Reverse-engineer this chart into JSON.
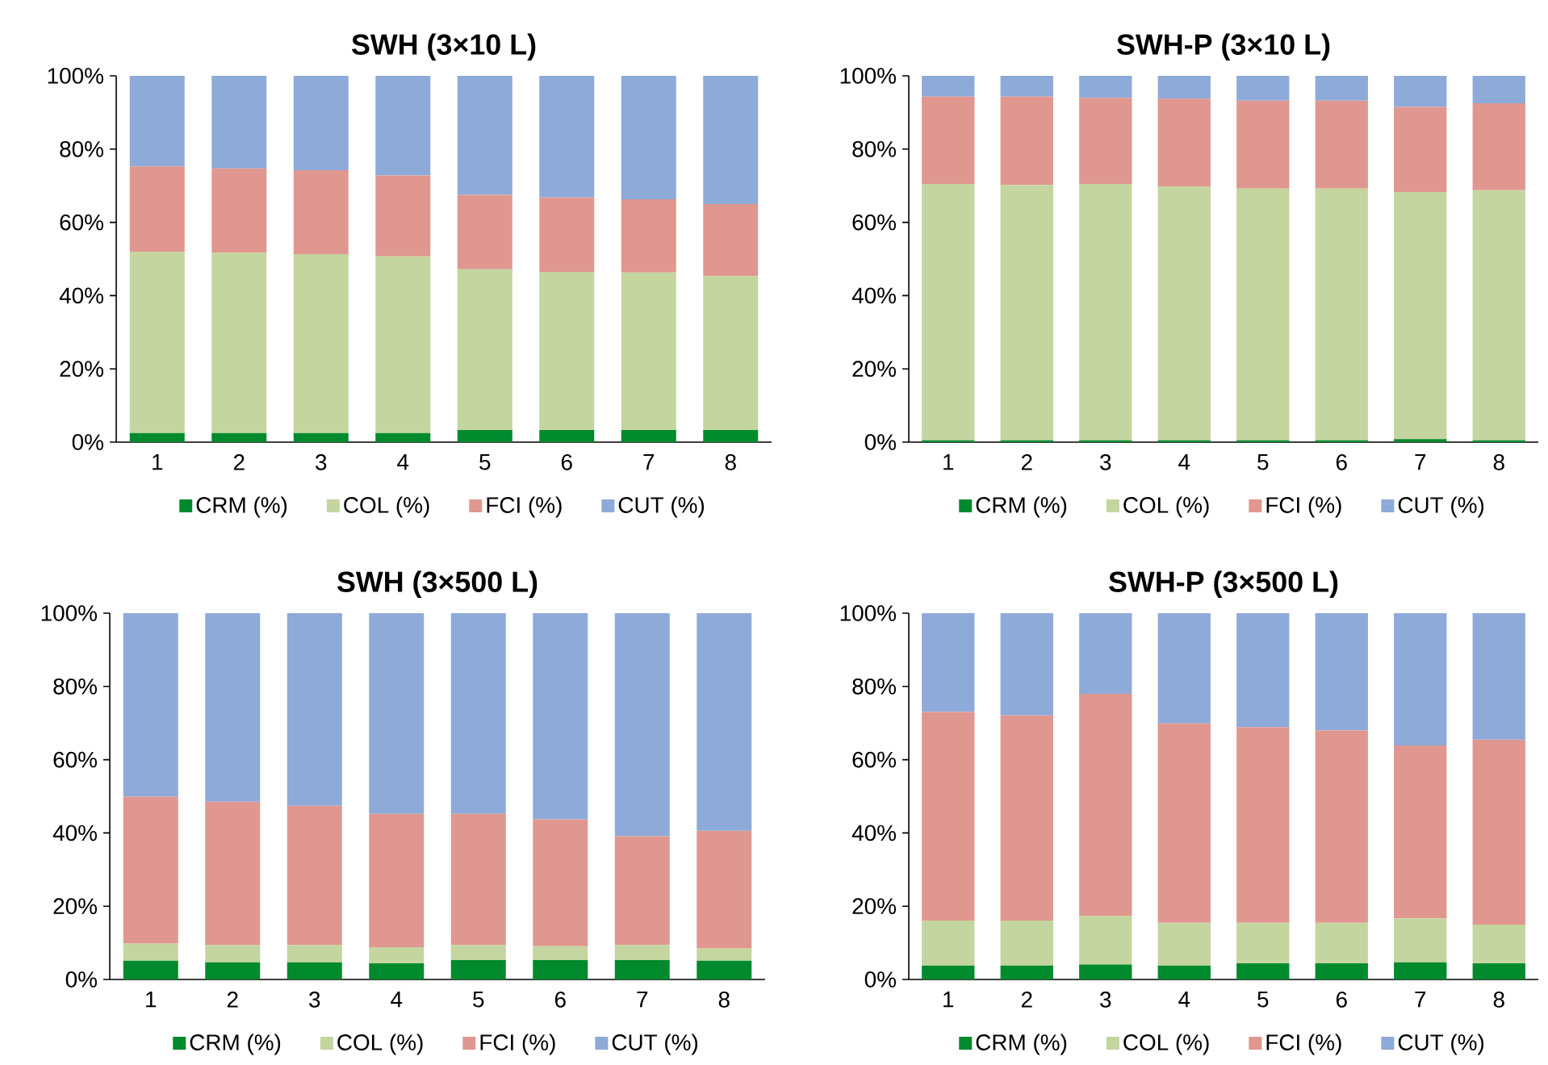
{
  "chart_data": [
    {
      "type": "bar",
      "stacked": true,
      "title": "SWH (3×10 L)",
      "categories": [
        "1",
        "2",
        "3",
        "4",
        "5",
        "6",
        "7",
        "8"
      ],
      "ylim": [
        0,
        100
      ],
      "yticks": [
        {
          "value": 0,
          "label": "0%"
        },
        {
          "value": 20,
          "label": "20%"
        },
        {
          "value": 40,
          "label": "40%"
        },
        {
          "value": 60,
          "label": "60%"
        },
        {
          "value": 80,
          "label": "80%"
        },
        {
          "value": 100,
          "label": "100%"
        }
      ],
      "legend": "bottom",
      "series": [
        {
          "name": "CRM (%)",
          "color": "#008a2e",
          "values": [
            2.5,
            2.5,
            2.5,
            2.5,
            3.3,
            3.3,
            3.3,
            3.3
          ]
        },
        {
          "name": "COL (%)",
          "color": "#c4d59f",
          "values": [
            49.5,
            49.2,
            48.8,
            48.2,
            43.9,
            43.2,
            43.0,
            42.0
          ]
        },
        {
          "name": "FCI (%)",
          "color": "#e0978f",
          "values": [
            23.3,
            23.0,
            22.9,
            22.1,
            20.3,
            20.3,
            20.0,
            19.7
          ]
        },
        {
          "name": "CUT (%)",
          "color": "#8eaad8",
          "values": [
            24.7,
            25.3,
            25.8,
            27.2,
            32.5,
            33.2,
            33.7,
            35.0
          ]
        }
      ]
    },
    {
      "type": "bar",
      "stacked": true,
      "title": "SWH-P (3×10 L)",
      "categories": [
        "1",
        "2",
        "3",
        "4",
        "5",
        "6",
        "7",
        "8"
      ],
      "ylim": [
        0,
        100
      ],
      "yticks": [
        {
          "value": 0,
          "label": "0%"
        },
        {
          "value": 20,
          "label": "20%"
        },
        {
          "value": 40,
          "label": "40%"
        },
        {
          "value": 60,
          "label": "60%"
        },
        {
          "value": 80,
          "label": "80%"
        },
        {
          "value": 100,
          "label": "100%"
        }
      ],
      "legend": "bottom",
      "series": [
        {
          "name": "CRM (%)",
          "color": "#008a2e",
          "values": [
            0.5,
            0.5,
            0.5,
            0.5,
            0.5,
            0.5,
            0.8,
            0.5
          ]
        },
        {
          "name": "COL (%)",
          "color": "#c4d59f",
          "values": [
            70.0,
            69.7,
            70.0,
            69.3,
            68.7,
            68.7,
            67.5,
            68.3
          ]
        },
        {
          "name": "FCI (%)",
          "color": "#e0978f",
          "values": [
            23.8,
            24.1,
            23.5,
            24.0,
            24.0,
            24.0,
            23.2,
            23.7
          ]
        },
        {
          "name": "CUT (%)",
          "color": "#8eaad8",
          "values": [
            5.7,
            5.7,
            6.0,
            6.2,
            6.8,
            6.8,
            8.5,
            7.5
          ]
        }
      ]
    },
    {
      "type": "bar",
      "stacked": true,
      "title": "SWH (3×500 L)",
      "categories": [
        "1",
        "2",
        "3",
        "4",
        "5",
        "6",
        "7",
        "8"
      ],
      "ylim": [
        0,
        100
      ],
      "yticks": [
        {
          "value": 0,
          "label": "0%"
        },
        {
          "value": 20,
          "label": "20%"
        },
        {
          "value": 40,
          "label": "40%"
        },
        {
          "value": 60,
          "label": "60%"
        },
        {
          "value": 80,
          "label": "80%"
        },
        {
          "value": 100,
          "label": "100%"
        }
      ],
      "legend": "bottom",
      "series": [
        {
          "name": "CRM (%)",
          "color": "#008a2e",
          "values": [
            5.1,
            4.7,
            4.7,
            4.4,
            5.3,
            5.3,
            5.3,
            5.1
          ]
        },
        {
          "name": "COL (%)",
          "color": "#c4d59f",
          "values": [
            4.7,
            4.7,
            4.7,
            4.4,
            4.1,
            3.8,
            4.1,
            3.4
          ]
        },
        {
          "name": "FCI (%)",
          "color": "#e0978f",
          "values": [
            40.1,
            39.1,
            38.0,
            36.4,
            35.8,
            34.6,
            29.7,
            32.1
          ]
        },
        {
          "name": "CUT (%)",
          "color": "#8eaad8",
          "values": [
            50.1,
            51.5,
            52.6,
            54.8,
            54.8,
            56.3,
            60.9,
            59.4
          ]
        }
      ]
    },
    {
      "type": "bar",
      "stacked": true,
      "title": "SWH-P (3×500 L)",
      "categories": [
        "1",
        "2",
        "3",
        "4",
        "5",
        "6",
        "7",
        "8"
      ],
      "ylim": [
        0,
        100
      ],
      "yticks": [
        {
          "value": 0,
          "label": "0%"
        },
        {
          "value": 20,
          "label": "20%"
        },
        {
          "value": 40,
          "label": "40%"
        },
        {
          "value": 60,
          "label": "60%"
        },
        {
          "value": 80,
          "label": "80%"
        },
        {
          "value": 100,
          "label": "100%"
        }
      ],
      "legend": "bottom",
      "series": [
        {
          "name": "CRM (%)",
          "color": "#008a2e",
          "values": [
            3.8,
            3.8,
            4.1,
            3.8,
            4.4,
            4.4,
            4.7,
            4.4
          ]
        },
        {
          "name": "COL (%)",
          "color": "#c4d59f",
          "values": [
            12.3,
            12.3,
            13.2,
            11.7,
            11.1,
            11.1,
            12.0,
            10.6
          ]
        },
        {
          "name": "FCI (%)",
          "color": "#e0978f",
          "values": [
            56.9,
            56.0,
            60.7,
            54.4,
            53.4,
            52.5,
            47.2,
            50.5
          ]
        },
        {
          "name": "CUT (%)",
          "color": "#8eaad8",
          "values": [
            27.0,
            27.9,
            22.0,
            30.1,
            31.1,
            32.0,
            36.1,
            34.5
          ]
        }
      ]
    }
  ]
}
